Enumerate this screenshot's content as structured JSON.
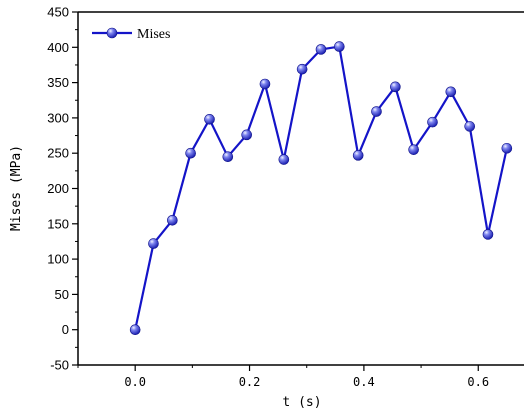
{
  "chart_data": {
    "type": "line",
    "xlabel": "t (s)",
    "ylabel": "Mises (MPa)",
    "xlim": [
      -0.1,
      0.68
    ],
    "ylim": [
      -50,
      450
    ],
    "xticks": [
      0.0,
      0.2,
      0.4,
      0.6
    ],
    "xtick_labels": [
      "0.0",
      "0.2",
      "0.4",
      "0.6"
    ],
    "yticks": [
      -50,
      0,
      50,
      100,
      150,
      200,
      250,
      300,
      350,
      400,
      450
    ],
    "ytick_labels": [
      "-50",
      "0",
      "50",
      "100",
      "150",
      "200",
      "250",
      "300",
      "350",
      "400",
      "450"
    ],
    "grid": false,
    "legend": {
      "position": "top-left"
    },
    "series": [
      {
        "name": "Mises",
        "color": "#1414c8",
        "marker": "sphere",
        "x": [
          0.0,
          0.032,
          0.065,
          0.097,
          0.13,
          0.162,
          0.195,
          0.227,
          0.26,
          0.292,
          0.325,
          0.357,
          0.39,
          0.422,
          0.455,
          0.487,
          0.52,
          0.552,
          0.585,
          0.617,
          0.65
        ],
        "y": [
          0,
          122,
          155,
          250,
          298,
          245,
          276,
          348,
          241,
          369,
          397,
          401,
          247,
          309,
          344,
          255,
          294,
          337,
          288,
          135,
          257
        ]
      }
    ]
  }
}
